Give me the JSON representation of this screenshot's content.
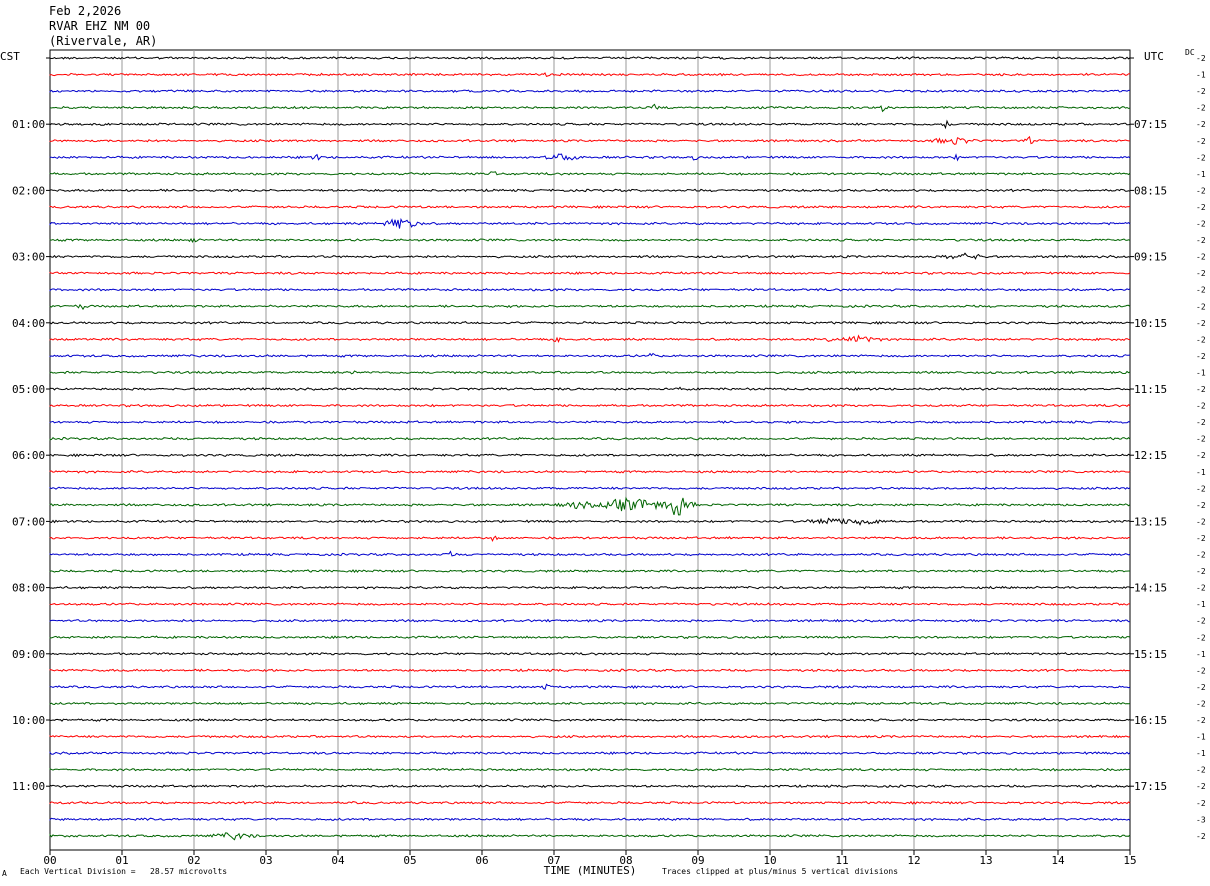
{
  "header": {
    "date": "Feb 2,2026",
    "station": "RVAR EHZ NM 00",
    "location": "(Rivervale, AR)"
  },
  "left_axis_label": "CST",
  "right_axis_label": "UTC",
  "dc_label": "DC",
  "footer": {
    "scale_note": "Each Vertical Division =   28.57 microvolts",
    "clip_note": "Traces clipped at plus/minus 5 vertical divisions",
    "corner_mark": "A"
  },
  "chart_data": {
    "type": "line",
    "title": "",
    "xlabel": "TIME (MINUTES)",
    "ylabel": "",
    "xlim": [
      0,
      15
    ],
    "x_ticks": [
      "00",
      "01",
      "02",
      "03",
      "04",
      "05",
      "06",
      "07",
      "08",
      "09",
      "10",
      "11",
      "12",
      "13",
      "14",
      "15"
    ],
    "trace_count": 48,
    "trace_colors": [
      "#000000",
      "#ff0000",
      "#0000cc",
      "#006400"
    ],
    "left_time_labels": [
      "",
      "01:00",
      "02:00",
      "03:00",
      "04:00",
      "05:00",
      "06:00",
      "07:00",
      "08:00",
      "09:00",
      "10:00",
      "11:00"
    ],
    "right_time_labels": [
      "",
      "07:15",
      "08:15",
      "09:15",
      "10:15",
      "11:15",
      "12:15",
      "13:15",
      "14:15",
      "15:15",
      "16:15",
      "17:15"
    ],
    "dc_offsets": [
      "-2",
      "-1",
      "-2",
      "-2",
      "-2",
      "-2",
      "-2",
      "-1",
      "-2",
      "-2",
      "-2",
      "-2",
      "-2",
      "-2",
      "-2",
      "-2",
      "-2",
      "-2",
      "-2",
      "-1",
      "-2",
      "-2",
      "-2",
      "-2",
      "-2",
      "-1",
      "-2",
      "-2",
      "-2",
      "-2",
      "-2",
      "-2",
      "-2",
      "-1",
      "-2",
      "-2",
      "-1",
      "-2",
      "-2",
      "-2",
      "-2",
      "-1",
      "-1",
      "-2",
      "-2",
      "-2",
      "-3",
      "-2"
    ],
    "events": [
      {
        "trace": 1,
        "minute": 6.9,
        "amplitude": 1.5
      },
      {
        "trace": 3,
        "minute": 8.4,
        "amplitude": 2
      },
      {
        "trace": 3,
        "minute": 11.55,
        "amplitude": 2.5
      },
      {
        "trace": 4,
        "minute": 12.45,
        "amplitude": 2.5
      },
      {
        "trace": 5,
        "minute": 12.55,
        "amplitude": 3
      },
      {
        "trace": 5,
        "minute": 13.6,
        "amplitude": 2.5
      },
      {
        "trace": 6,
        "minute": 3.7,
        "amplitude": 2.5
      },
      {
        "trace": 6,
        "minute": 7.1,
        "amplitude": 3
      },
      {
        "trace": 6,
        "minute": 8.95,
        "amplitude": 1.5
      },
      {
        "trace": 6,
        "minute": 12.6,
        "amplitude": 1.5
      },
      {
        "trace": 7,
        "minute": 6.15,
        "amplitude": 1.5
      },
      {
        "trace": 10,
        "minute": 4.9,
        "amplitude": 5
      },
      {
        "trace": 11,
        "minute": 2.0,
        "amplitude": 1.5
      },
      {
        "trace": 12,
        "minute": 12.7,
        "amplitude": 3
      },
      {
        "trace": 15,
        "minute": 0.45,
        "amplitude": 2
      },
      {
        "trace": 17,
        "minute": 7.05,
        "amplitude": 2
      },
      {
        "trace": 17,
        "minute": 10.85,
        "amplitude": 2
      },
      {
        "trace": 17,
        "minute": 11.25,
        "amplitude": 3
      },
      {
        "trace": 18,
        "minute": 8.35,
        "amplitude": 1.5
      },
      {
        "trace": 19,
        "minute": 4.2,
        "amplitude": 1.5
      },
      {
        "trace": 20,
        "minute": 8.8,
        "amplitude": 1.5
      },
      {
        "trace": 27,
        "minute": 7.35,
        "amplitude": 3
      },
      {
        "trace": 27,
        "minute": 8.0,
        "amplitude": 4
      },
      {
        "trace": 27,
        "minute": 8.72,
        "amplitude": 10
      },
      {
        "trace": 28,
        "minute": 10.8,
        "amplitude": 3
      },
      {
        "trace": 28,
        "minute": 11.3,
        "amplitude": 3
      },
      {
        "trace": 29,
        "minute": 6.15,
        "amplitude": 1.5
      },
      {
        "trace": 30,
        "minute": 5.55,
        "amplitude": 2
      },
      {
        "trace": 38,
        "minute": 6.9,
        "amplitude": 2
      },
      {
        "trace": 47,
        "minute": 2.55,
        "amplitude": 3
      }
    ]
  }
}
